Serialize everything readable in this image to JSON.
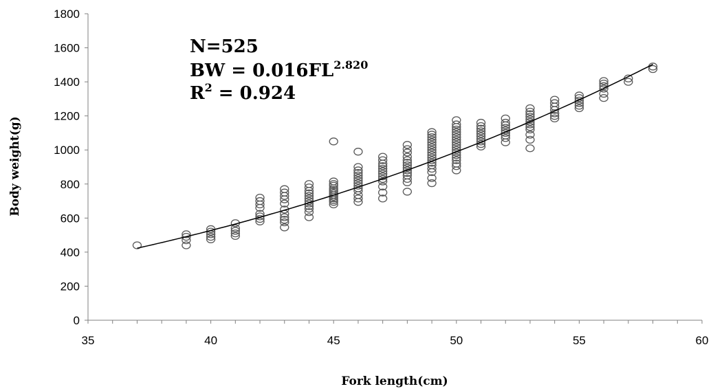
{
  "chart_data": {
    "type": "scatter",
    "title": "",
    "xlabel": "Fork length(cm)",
    "ylabel": "Body weight(g)",
    "xlim": [
      35,
      60
    ],
    "ylim": [
      0,
      1800
    ],
    "xticks": [
      35,
      40,
      45,
      50,
      55,
      60
    ],
    "yticks": [
      0,
      200,
      400,
      600,
      800,
      1000,
      1200,
      1400,
      1600,
      1800
    ],
    "grid": false,
    "legend": "none",
    "marker": "open-circle",
    "marker_color": "#595959",
    "annotations": {
      "n_text": "N=525",
      "eq_prefix": "BW = 0.016FL",
      "eq_exponent": "2.820",
      "r_prefix": "R",
      "r_exponent": "2",
      "r_value": " = 0.924"
    },
    "fit": {
      "a": 0.016,
      "b": 2.82,
      "x_range": [
        37,
        58
      ]
    },
    "series": [
      {
        "name": "",
        "points": [
          [
            37,
            440
          ],
          [
            39,
            440
          ],
          [
            39,
            470
          ],
          [
            39,
            490
          ],
          [
            39,
            505
          ],
          [
            40,
            475
          ],
          [
            40,
            490
          ],
          [
            40,
            505
          ],
          [
            40,
            520
          ],
          [
            40,
            535
          ],
          [
            41,
            495
          ],
          [
            41,
            510
          ],
          [
            41,
            525
          ],
          [
            41,
            540
          ],
          [
            41,
            570
          ],
          [
            42,
            580
          ],
          [
            42,
            595
          ],
          [
            42,
            610
          ],
          [
            42,
            625
          ],
          [
            42,
            660
          ],
          [
            42,
            680
          ],
          [
            42,
            700
          ],
          [
            42,
            720
          ],
          [
            43,
            545
          ],
          [
            43,
            575
          ],
          [
            43,
            590
          ],
          [
            43,
            605
          ],
          [
            43,
            625
          ],
          [
            43,
            650
          ],
          [
            43,
            685
          ],
          [
            43,
            710
          ],
          [
            43,
            730
          ],
          [
            43,
            750
          ],
          [
            43,
            770
          ],
          [
            44,
            605
          ],
          [
            44,
            635
          ],
          [
            44,
            655
          ],
          [
            44,
            670
          ],
          [
            44,
            685
          ],
          [
            44,
            700
          ],
          [
            44,
            715
          ],
          [
            44,
            730
          ],
          [
            44,
            745
          ],
          [
            44,
            760
          ],
          [
            44,
            780
          ],
          [
            44,
            800
          ],
          [
            45,
            680
          ],
          [
            45,
            695
          ],
          [
            45,
            705
          ],
          [
            45,
            715
          ],
          [
            45,
            725
          ],
          [
            45,
            735
          ],
          [
            45,
            745
          ],
          [
            45,
            755
          ],
          [
            45,
            765
          ],
          [
            45,
            775
          ],
          [
            45,
            790
          ],
          [
            45,
            800
          ],
          [
            45,
            815
          ],
          [
            45,
            1050
          ],
          [
            46,
            695
          ],
          [
            46,
            715
          ],
          [
            46,
            735
          ],
          [
            46,
            760
          ],
          [
            46,
            775
          ],
          [
            46,
            790
          ],
          [
            46,
            805
          ],
          [
            46,
            820
          ],
          [
            46,
            835
          ],
          [
            46,
            850
          ],
          [
            46,
            865
          ],
          [
            46,
            880
          ],
          [
            46,
            900
          ],
          [
            46,
            990
          ],
          [
            47,
            715
          ],
          [
            47,
            750
          ],
          [
            47,
            785
          ],
          [
            47,
            815
          ],
          [
            47,
            830
          ],
          [
            47,
            845
          ],
          [
            47,
            860
          ],
          [
            47,
            875
          ],
          [
            47,
            890
          ],
          [
            47,
            905
          ],
          [
            47,
            920
          ],
          [
            47,
            940
          ],
          [
            47,
            960
          ],
          [
            48,
            755
          ],
          [
            48,
            810
          ],
          [
            48,
            830
          ],
          [
            48,
            850
          ],
          [
            48,
            865
          ],
          [
            48,
            880
          ],
          [
            48,
            895
          ],
          [
            48,
            910
          ],
          [
            48,
            925
          ],
          [
            48,
            940
          ],
          [
            48,
            960
          ],
          [
            48,
            985
          ],
          [
            48,
            1005
          ],
          [
            48,
            1030
          ],
          [
            49,
            805
          ],
          [
            49,
            835
          ],
          [
            49,
            870
          ],
          [
            49,
            890
          ],
          [
            49,
            910
          ],
          [
            49,
            925
          ],
          [
            49,
            940
          ],
          [
            49,
            955
          ],
          [
            49,
            970
          ],
          [
            49,
            985
          ],
          [
            49,
            1000
          ],
          [
            49,
            1015
          ],
          [
            49,
            1030
          ],
          [
            49,
            1045
          ],
          [
            49,
            1060
          ],
          [
            49,
            1075
          ],
          [
            49,
            1090
          ],
          [
            49,
            1105
          ],
          [
            50,
            880
          ],
          [
            50,
            905
          ],
          [
            50,
            920
          ],
          [
            50,
            940
          ],
          [
            50,
            955
          ],
          [
            50,
            970
          ],
          [
            50,
            985
          ],
          [
            50,
            1000
          ],
          [
            50,
            1015
          ],
          [
            50,
            1030
          ],
          [
            50,
            1045
          ],
          [
            50,
            1060
          ],
          [
            50,
            1075
          ],
          [
            50,
            1090
          ],
          [
            50,
            1105
          ],
          [
            50,
            1120
          ],
          [
            50,
            1135
          ],
          [
            50,
            1150
          ],
          [
            50,
            1175
          ],
          [
            51,
            1020
          ],
          [
            51,
            1035
          ],
          [
            51,
            1050
          ],
          [
            51,
            1065
          ],
          [
            51,
            1080
          ],
          [
            51,
            1095
          ],
          [
            51,
            1110
          ],
          [
            51,
            1125
          ],
          [
            51,
            1140
          ],
          [
            51,
            1160
          ],
          [
            52,
            1045
          ],
          [
            52,
            1070
          ],
          [
            52,
            1085
          ],
          [
            52,
            1100
          ],
          [
            52,
            1115
          ],
          [
            52,
            1130
          ],
          [
            52,
            1145
          ],
          [
            52,
            1160
          ],
          [
            52,
            1185
          ],
          [
            53,
            1010
          ],
          [
            53,
            1060
          ],
          [
            53,
            1090
          ],
          [
            53,
            1120
          ],
          [
            53,
            1135
          ],
          [
            53,
            1150
          ],
          [
            53,
            1165
          ],
          [
            53,
            1180
          ],
          [
            53,
            1195
          ],
          [
            53,
            1210
          ],
          [
            53,
            1225
          ],
          [
            53,
            1245
          ],
          [
            54,
            1185
          ],
          [
            54,
            1200
          ],
          [
            54,
            1215
          ],
          [
            54,
            1235
          ],
          [
            54,
            1255
          ],
          [
            54,
            1275
          ],
          [
            54,
            1295
          ],
          [
            55,
            1245
          ],
          [
            55,
            1260
          ],
          [
            55,
            1275
          ],
          [
            55,
            1290
          ],
          [
            55,
            1305
          ],
          [
            55,
            1320
          ],
          [
            56,
            1305
          ],
          [
            56,
            1330
          ],
          [
            56,
            1360
          ],
          [
            56,
            1375
          ],
          [
            56,
            1390
          ],
          [
            56,
            1405
          ],
          [
            57,
            1400
          ],
          [
            57,
            1420
          ],
          [
            58,
            1475
          ],
          [
            58,
            1490
          ]
        ]
      }
    ]
  }
}
